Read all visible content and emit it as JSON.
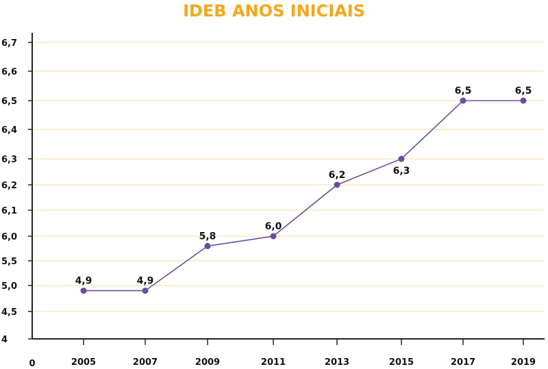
{
  "chart_data": {
    "type": "line",
    "title": "IDEB ANOS INICIAIS",
    "xlabel": "",
    "ylabel": "",
    "x_origin_label": "0",
    "categories": [
      "2005",
      "2007",
      "2009",
      "2011",
      "2013",
      "2015",
      "2017",
      "2019"
    ],
    "series": [
      {
        "values": [
          4.9,
          4.9,
          5.8,
          6.0,
          6.2,
          6.3,
          6.5,
          6.5
        ],
        "labels": [
          "4,9",
          "4,9",
          "5,8",
          "6,0",
          "6,2",
          "6,3",
          "6,5",
          "6,5"
        ],
        "color": "#6a4d9c"
      }
    ],
    "y_ticks": [
      "4",
      "4,5",
      "5,0",
      "5,5",
      "6,0",
      "6,1",
      "6,2",
      "6,3",
      "6,4",
      "6,5",
      "6,6",
      "6,7"
    ],
    "y_tick_values": [
      4.0,
      4.5,
      5.0,
      5.5,
      6.0,
      6.1,
      6.2,
      6.3,
      6.4,
      6.5,
      6.6,
      6.7
    ],
    "grid": true,
    "grid_color": "#f7dfa3",
    "axis_color": "#222222",
    "title_color": "#f3a81c",
    "legend": "none"
  }
}
